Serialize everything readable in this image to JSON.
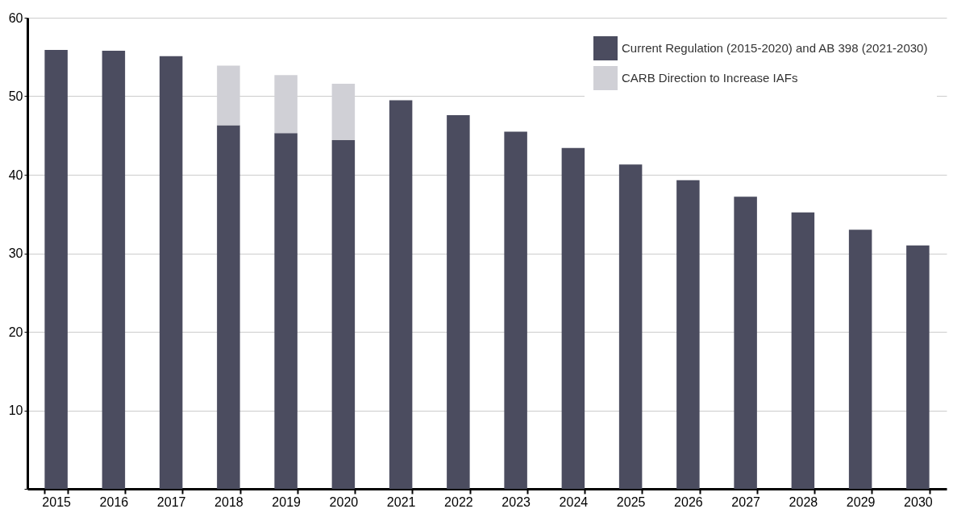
{
  "chart_data": {
    "type": "bar",
    "stacked": true,
    "categories": [
      "2015",
      "2016",
      "2017",
      "2018",
      "2019",
      "2020",
      "2021",
      "2022",
      "2023",
      "2024",
      "2025",
      "2026",
      "2027",
      "2028",
      "2029",
      "2030"
    ],
    "series": [
      {
        "name": "Current Regulation (2015-2020) and AB 398 (2021-2030)",
        "color": "#4b4c5f",
        "values": [
          55.9,
          55.8,
          55.1,
          46.3,
          45.3,
          44.4,
          49.5,
          47.6,
          45.5,
          43.4,
          41.3,
          39.3,
          37.2,
          35.2,
          33.0,
          31.0
        ]
      },
      {
        "name": "CARB Direction to Increase IAFs",
        "color": "#d0d0d6",
        "values": [
          null,
          null,
          null,
          7.6,
          7.4,
          7.2,
          null,
          null,
          null,
          null,
          null,
          null,
          null,
          null,
          null,
          null
        ]
      }
    ],
    "ylim": [
      0,
      60
    ],
    "yticks": [
      {
        "value": 0,
        "label": null
      },
      10,
      20,
      30,
      40,
      50,
      60
    ],
    "grid": "y",
    "legend": "top right"
  }
}
